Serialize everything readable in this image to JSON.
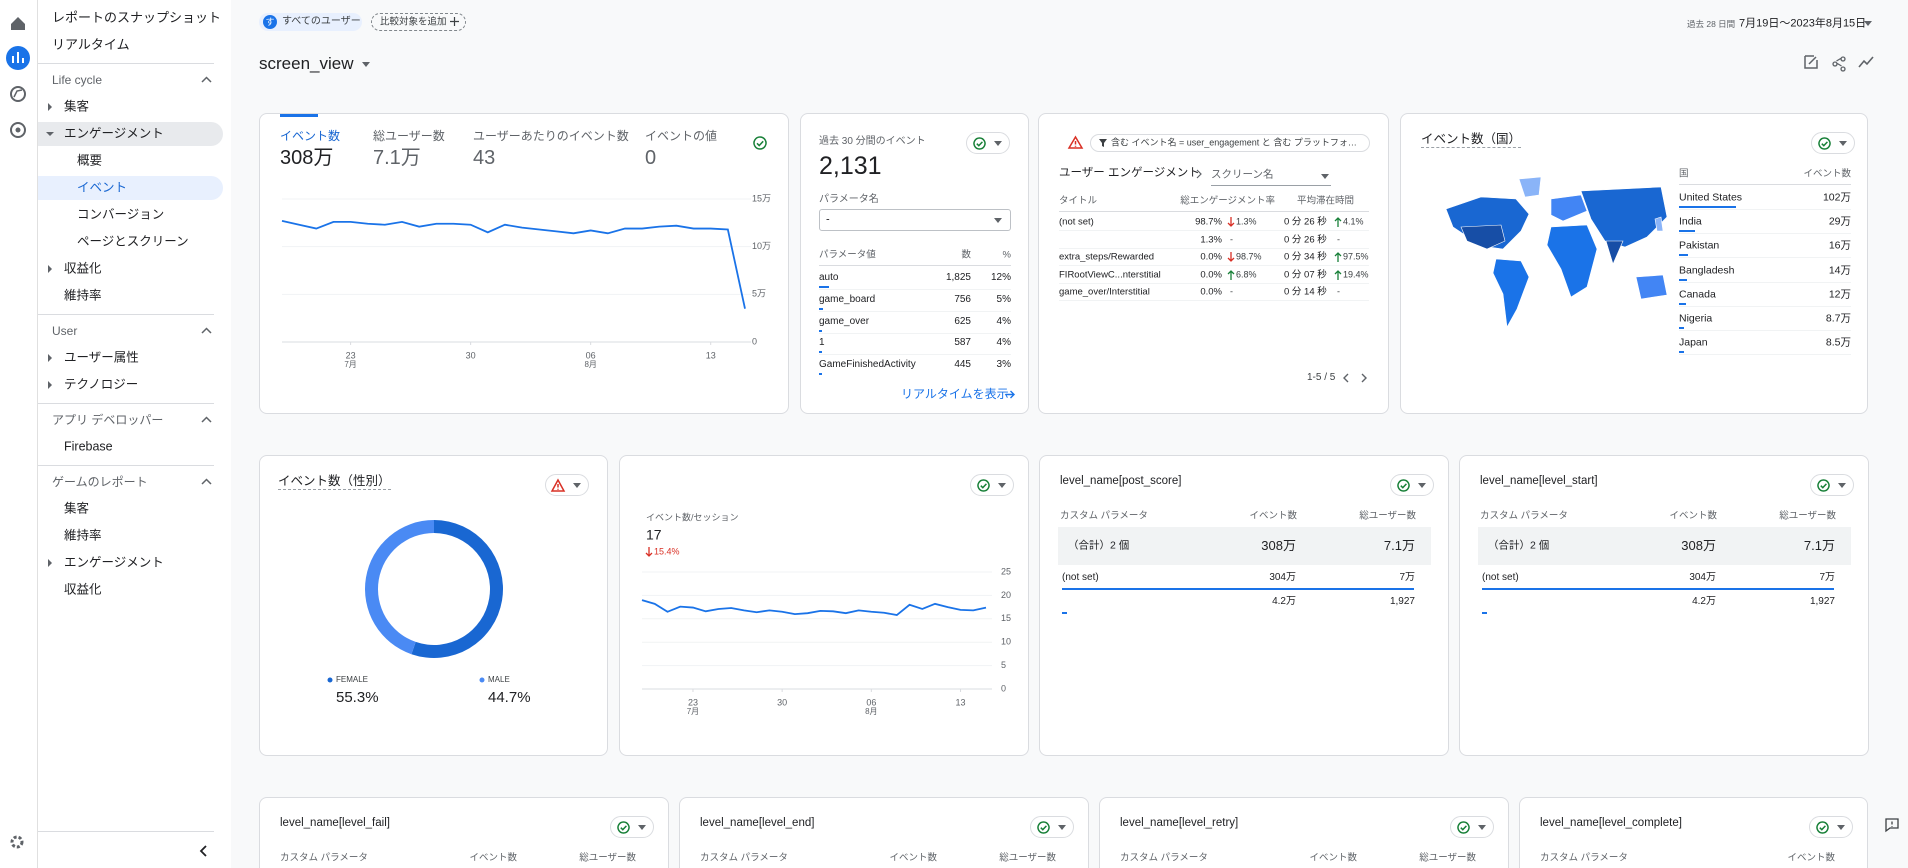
{
  "sidebar": {
    "top": [
      "レポートのスナップショット",
      "リアルタイム"
    ],
    "sections": [
      {
        "title": "Life cycle",
        "items": [
          {
            "label": "集客",
            "arrow": "right"
          },
          {
            "label": "エンゲージメント",
            "arrow": "down",
            "active": true,
            "children": [
              {
                "label": "概要"
              },
              {
                "label": "イベント",
                "selected": true
              },
              {
                "label": "コンバージョン"
              },
              {
                "label": "ページとスクリーン"
              }
            ]
          },
          {
            "label": "収益化",
            "arrow": "right"
          },
          {
            "label": "維持率"
          }
        ]
      },
      {
        "title": "User",
        "items": [
          {
            "label": "ユーザー属性",
            "arrow": "right"
          },
          {
            "label": "テクノロジー",
            "arrow": "right"
          }
        ]
      },
      {
        "title": "アプリ デベロッパー",
        "items": [
          {
            "label": "Firebase"
          }
        ]
      },
      {
        "title": "ゲームのレポート",
        "items": [
          {
            "label": "集客"
          },
          {
            "label": "維持率"
          },
          {
            "label": "エンゲージメント",
            "arrow": "right"
          },
          {
            "label": "収益化"
          }
        ]
      }
    ]
  },
  "header": {
    "segment_initial": "す",
    "segment": "すべてのユーザー",
    "compare": "比較対象を追加",
    "period_hint": "過去 28 日間",
    "date_range": "7月19日～2023年8月15日",
    "title": "screen_view"
  },
  "events_card": {
    "tabs": [
      {
        "label": "イベント数",
        "value": "308万"
      },
      {
        "label": "総ユーザー数",
        "value": "7.1万"
      },
      {
        "label": "ユーザーあたりのイベント数",
        "value": 43
      },
      {
        "label": "イベントの値",
        "value": 0
      }
    ],
    "chart": {
      "type": "line",
      "color": "#1a73e8",
      "ylim": [
        0,
        150000
      ],
      "yticks": [
        {
          "value": 150000,
          "label": "15万"
        },
        {
          "value": 100000,
          "label": "10万"
        },
        {
          "value": 50000,
          "label": "5万"
        },
        0
      ],
      "xticks": [
        {
          "value": 4,
          "label": "23",
          "month": "7月"
        },
        {
          "value": 11,
          "label": "30"
        },
        {
          "value": 18,
          "label": "06",
          "month": "8月"
        },
        {
          "value": 25,
          "label": "13"
        }
      ],
      "values": [
        127000,
        123000,
        119000,
        126000,
        126000,
        124000,
        123000,
        126000,
        121000,
        124000,
        124000,
        123000,
        115000,
        123000,
        120000,
        118000,
        116000,
        114000,
        117000,
        114000,
        119000,
        119000,
        121000,
        122000,
        119000,
        119000,
        118000,
        35000
      ]
    }
  },
  "realtime_card": {
    "title": "過去 30 分間のイベント",
    "value": "2,131",
    "param_label": "パラメータ名",
    "param_value": "-",
    "columns": [
      "パラメータ値",
      "数",
      "%"
    ],
    "rows": [
      {
        "name": "auto",
        "count": "1,825",
        "pct": 12,
        "pct_label": "12%"
      },
      {
        "name": "game_board",
        "count": "756",
        "pct": 5,
        "pct_label": "5%"
      },
      {
        "name": "game_over",
        "count": "625",
        "pct": 4,
        "pct_label": "4%"
      },
      {
        "name": "1",
        "count": "587",
        "pct": 4,
        "pct_label": "4%"
      },
      {
        "name": "GameFinishedActivity",
        "count": "445",
        "pct": 3,
        "pct_label": "3%"
      }
    ],
    "link": "リアルタイムを表示"
  },
  "engagement_card": {
    "filter": "含む イベント名 = user_engagement と 含む プラットフォ…",
    "title": "ユーザー エンゲージメント",
    "breadcrumb": "スクリーン名",
    "columns": [
      "タイトル",
      "総エンゲージメント率",
      "平均滞在時間"
    ],
    "rows": [
      {
        "title": "(not set)",
        "rate": "98.7%",
        "rate_change": {
          "dir": "down",
          "label": "1.3%"
        },
        "time": "0 分 26 秒",
        "time_change": {
          "dir": "up",
          "label": "4.1%"
        }
      },
      {
        "title": null,
        "rate": "1.3%",
        "rate_change": "-",
        "time": "0 分 26 秒",
        "time_change": "-"
      },
      {
        "title": "extra_steps/Rewarded",
        "rate": "0.0%",
        "rate_change": {
          "dir": "down",
          "label": "98.7%"
        },
        "time": "0 分 34 秒",
        "time_change": {
          "dir": "up",
          "label": "97.5%"
        }
      },
      {
        "title": "FIRootViewC...nterstitial",
        "rate": "0.0%",
        "rate_change": {
          "dir": "up",
          "label": "6.8%"
        },
        "time": "0 分 07 秒",
        "time_change": {
          "dir": "up",
          "label": "19.4%"
        }
      },
      {
        "title": "game_over/Interstitial",
        "rate": "0.0%",
        "rate_change": "-",
        "time": "0 分 14 秒",
        "time_change": "-"
      }
    ],
    "pagination": "1-5 / 5"
  },
  "country_card": {
    "title": "イベント数（国）",
    "columns": [
      "国",
      "イベント数"
    ],
    "rows": [
      {
        "name": "United States",
        "value": 1020000,
        "label": "102万"
      },
      {
        "name": "India",
        "value": 290000,
        "label": "29万"
      },
      {
        "name": "Pakistan",
        "value": 160000,
        "label": "16万"
      },
      {
        "name": "Bangladesh",
        "value": 140000,
        "label": "14万"
      },
      {
        "name": "Canada",
        "value": 120000,
        "label": "12万"
      },
      {
        "name": "Nigeria",
        "value": 87000,
        "label": "8.7万"
      },
      {
        "name": "Japan",
        "value": 85000,
        "label": "8.5万"
      }
    ]
  },
  "gender_card": {
    "title": "イベント数（性別）",
    "segments": [
      {
        "name": "FEMALE",
        "value": 55.3,
        "label": "55.3%",
        "color": "#1967d2"
      },
      {
        "name": "MALE",
        "value": 44.7,
        "label": "44.7%",
        "color": "#4a8af4"
      }
    ]
  },
  "session_card": {
    "label": "イベント数/セッション",
    "value": 17,
    "change": "15.4%",
    "chart": {
      "type": "line",
      "color": "#1a73e8",
      "ylim": [
        0,
        25
      ],
      "yticks": [
        25,
        20,
        15,
        10,
        5,
        0
      ],
      "xticks": [
        {
          "value": 4,
          "label": "23",
          "month": "7月"
        },
        {
          "value": 11,
          "label": "30"
        },
        {
          "value": 18,
          "label": "06",
          "month": "8月"
        },
        {
          "value": 25,
          "label": "13"
        }
      ],
      "values": [
        19,
        18.2,
        16.5,
        17.6,
        17.4,
        16.6,
        17.1,
        17.3,
        16.8,
        16.4,
        16.8,
        16.5,
        16,
        16.2,
        16.7,
        16.6,
        16.2,
        16.8,
        16.5,
        16.3,
        15.8,
        18,
        17.1,
        18.2,
        17.5,
        16.9,
        16.8,
        17.4
      ]
    }
  },
  "param_cards": [
    {
      "title": "level_name[post_score]",
      "columns": [
        "カスタム パラメータ",
        "イベント数",
        "総ユーザー数"
      ],
      "total": {
        "name": "（合計）2 個",
        "events": 3080000,
        "events_label": "308万",
        "users_label": "7.1万"
      },
      "rows": [
        {
          "name": "(not set)",
          "events": 3040000,
          "events_label": "304万",
          "users_label": "7万"
        },
        {
          "name": null,
          "events": 42000,
          "events_label": "4.2万",
          "users_label": "1,927"
        }
      ]
    },
    {
      "title": "level_name[level_start]",
      "columns": [
        "カスタム パラメータ",
        "イベント数",
        "総ユーザー数"
      ],
      "total": {
        "name": "（合計）2 個",
        "events": 3080000,
        "events_label": "308万",
        "users_label": "7.1万"
      },
      "rows": [
        {
          "name": "(not set)",
          "events": 3040000,
          "events_label": "304万",
          "users_label": "7万"
        },
        {
          "name": null,
          "events": 42000,
          "events_label": "4.2万",
          "users_label": "1,927"
        }
      ]
    }
  ],
  "bottom_cards": [
    {
      "title": "level_name[level_fail]",
      "columns": [
        "カスタム パラメータ",
        "イベント数",
        "総ユーザー数"
      ]
    },
    {
      "title": "level_name[level_end]",
      "columns": [
        "カスタム パラメータ",
        "イベント数",
        "総ユーザー数"
      ]
    },
    {
      "title": "level_name[level_retry]",
      "columns": [
        "カスタム パラメータ",
        "イベント数",
        "総ユーザー数"
      ]
    },
    {
      "title": "level_name[level_complete]",
      "columns": [
        "カスタム パラメータ",
        "イベント数"
      ]
    }
  ]
}
